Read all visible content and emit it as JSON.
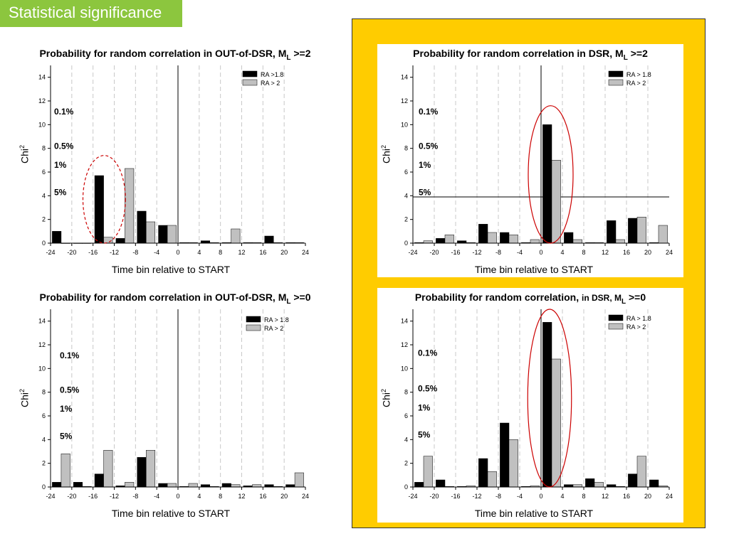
{
  "slide": {
    "title": "Statistical significance",
    "colors": {
      "title_bg": "#8cc63e",
      "panel_bg": "#ffcc00",
      "series1": "#000000",
      "series2": "#c0c0c0",
      "ellipse": "#cc0000"
    }
  },
  "chart_data": [
    {
      "id": "out-ml2",
      "type": "bar",
      "title_main": "Probability for random correlation in OUT-of-DSR, M",
      "title_sub": "L",
      "title_tail": " >=2",
      "xlabel": "Time bin relative to START",
      "ylabel": "Chi",
      "ylabel_sup": "2",
      "xlim": [
        -24,
        24
      ],
      "ylim": [
        0,
        15
      ],
      "xticks": [
        -24,
        -20,
        -16,
        -12,
        -8,
        -4,
        0,
        4,
        8,
        12,
        16,
        20,
        24
      ],
      "yticks": [
        0,
        2,
        4,
        6,
        8,
        10,
        12,
        14
      ],
      "x": [
        -22,
        -18,
        -14,
        -10,
        -6,
        -2,
        2,
        6,
        10,
        14,
        18,
        22
      ],
      "series": [
        {
          "name": "RA >1.8",
          "values": [
            1.0,
            0.0,
            5.7,
            0.4,
            2.7,
            1.5,
            0.05,
            0.2,
            0.05,
            0.05,
            0.6,
            0.05
          ]
        },
        {
          "name": "RA > 2",
          "values": [
            0.0,
            0.0,
            0.5,
            6.3,
            1.8,
            1.5,
            0.05,
            0.05,
            1.2,
            0.05,
            0.05,
            0.05
          ]
        }
      ],
      "significance": [
        {
          "label": "0.1%",
          "level": 11.1
        },
        {
          "label": "0.5%",
          "level": 8.2
        },
        {
          "label": "1%",
          "level": 6.6
        },
        {
          "label": "5%",
          "level": 4.3
        }
      ],
      "threshold_line": false,
      "ellipse": {
        "x": -13.9,
        "y": 3.7,
        "rx": 4.0,
        "ry": 3.7,
        "dashed": true
      }
    },
    {
      "id": "dsr-ml2",
      "type": "bar",
      "title_main": "Probability for random correlation in DSR, M",
      "title_sub": "L",
      "title_tail": " >=2",
      "xlabel": "Time bin relative to START",
      "ylabel": "Chi",
      "ylabel_sup": "2",
      "xlim": [
        -24,
        24
      ],
      "ylim": [
        0,
        15
      ],
      "xticks": [
        -24,
        -20,
        -16,
        -12,
        -8,
        -4,
        0,
        4,
        8,
        12,
        16,
        20,
        24
      ],
      "yticks": [
        0,
        2,
        4,
        6,
        8,
        10,
        12,
        14
      ],
      "x": [
        -22,
        -18,
        -14,
        -10,
        -6,
        -2,
        2,
        6,
        10,
        14,
        18,
        22
      ],
      "series": [
        {
          "name": "RA > 1.8",
          "values": [
            0.05,
            0.4,
            0.2,
            1.6,
            0.9,
            0.05,
            10.0,
            0.9,
            0.05,
            1.9,
            2.1,
            0.05
          ]
        },
        {
          "name": "RA > 2",
          "values": [
            0.2,
            0.7,
            0.05,
            0.9,
            0.7,
            0.3,
            7.0,
            0.3,
            0.05,
            0.3,
            2.2,
            1.5
          ]
        }
      ],
      "significance": [
        {
          "label": "0.1%",
          "level": 11.1
        },
        {
          "label": "0.5%",
          "level": 8.2
        },
        {
          "label": "1%",
          "level": 6.6
        },
        {
          "label": "5%",
          "level": 4.3
        }
      ],
      "threshold_line": true,
      "threshold_value": 3.9,
      "ellipse": {
        "x": 1.8,
        "y": 5.8,
        "rx": 4.2,
        "ry": 5.8,
        "dashed": false
      }
    },
    {
      "id": "out-ml0",
      "type": "bar",
      "title_main": "Probability for random correlation in OUT-of-DSR, M",
      "title_sub": "L",
      "title_tail": " >=0",
      "xlabel": "Time bin relative to START",
      "ylabel": "Chi",
      "ylabel_sup": "2",
      "xlim": [
        -24,
        24
      ],
      "ylim": [
        0,
        15
      ],
      "xticks": [
        -24,
        -20,
        -16,
        -12,
        -8,
        -4,
        0,
        4,
        8,
        12,
        16,
        20,
        24
      ],
      "yticks": [
        0,
        2,
        4,
        6,
        8,
        10,
        12,
        14
      ],
      "x": [
        -22,
        -18,
        -14,
        -10,
        -6,
        -2,
        2,
        6,
        10,
        14,
        18,
        22
      ],
      "series": [
        {
          "name": "RA > 1.8",
          "values": [
            0.4,
            0.4,
            1.1,
            0.1,
            2.5,
            0.3,
            0.05,
            0.2,
            0.3,
            0.1,
            0.2,
            0.2
          ]
        },
        {
          "name": "RA > 2",
          "values": [
            2.8,
            0.05,
            3.1,
            0.4,
            3.1,
            0.3,
            0.3,
            0.05,
            0.2,
            0.2,
            0.05,
            1.2
          ]
        }
      ],
      "significance": [
        {
          "label": "0.1%",
          "level": 11.1
        },
        {
          "label": "0.5%",
          "level": 8.2
        },
        {
          "label": "1%",
          "level": 6.6
        },
        {
          "label": "5%",
          "level": 4.3
        }
      ],
      "threshold_line": false,
      "ellipse": null
    },
    {
      "id": "dsr-ml0",
      "type": "bar",
      "title_main": "Probability for random correlation, ",
      "title_mid": "in DSR, M",
      "title_sub": "L",
      "title_tail": " >=0",
      "xlabel": "Time bin relative to START",
      "ylabel": "Chi",
      "ylabel_sup": "2",
      "xlim": [
        -24,
        24
      ],
      "ylim": [
        0,
        15
      ],
      "xticks": [
        -24,
        -20,
        -16,
        -12,
        -8,
        -4,
        0,
        4,
        8,
        12,
        16,
        20,
        24
      ],
      "yticks": [
        0,
        2,
        4,
        6,
        8,
        10,
        12,
        14
      ],
      "x": [
        -22,
        -18,
        -14,
        -10,
        -6,
        -2,
        2,
        6,
        10,
        14,
        18,
        22
      ],
      "series": [
        {
          "name": "RA > 1.8",
          "values": [
            0.4,
            0.6,
            0.05,
            2.4,
            5.4,
            0.05,
            13.9,
            0.2,
            0.7,
            0.2,
            1.1,
            0.6
          ]
        },
        {
          "name": "RA > 2",
          "values": [
            2.6,
            0.05,
            0.1,
            1.3,
            4.0,
            0.1,
            10.8,
            0.2,
            0.4,
            0.05,
            2.6,
            0.1
          ]
        }
      ],
      "significance": [
        {
          "label": "0.1%",
          "level": 11.3
        },
        {
          "label": "0.5%",
          "level": 8.3
        },
        {
          "label": "1%",
          "level": 6.7
        },
        {
          "label": "5%",
          "level": 4.4
        }
      ],
      "threshold_line": false,
      "ellipse": {
        "x": 1.6,
        "y": 7.5,
        "rx": 4.1,
        "ry": 7.5,
        "dashed": false
      }
    }
  ]
}
